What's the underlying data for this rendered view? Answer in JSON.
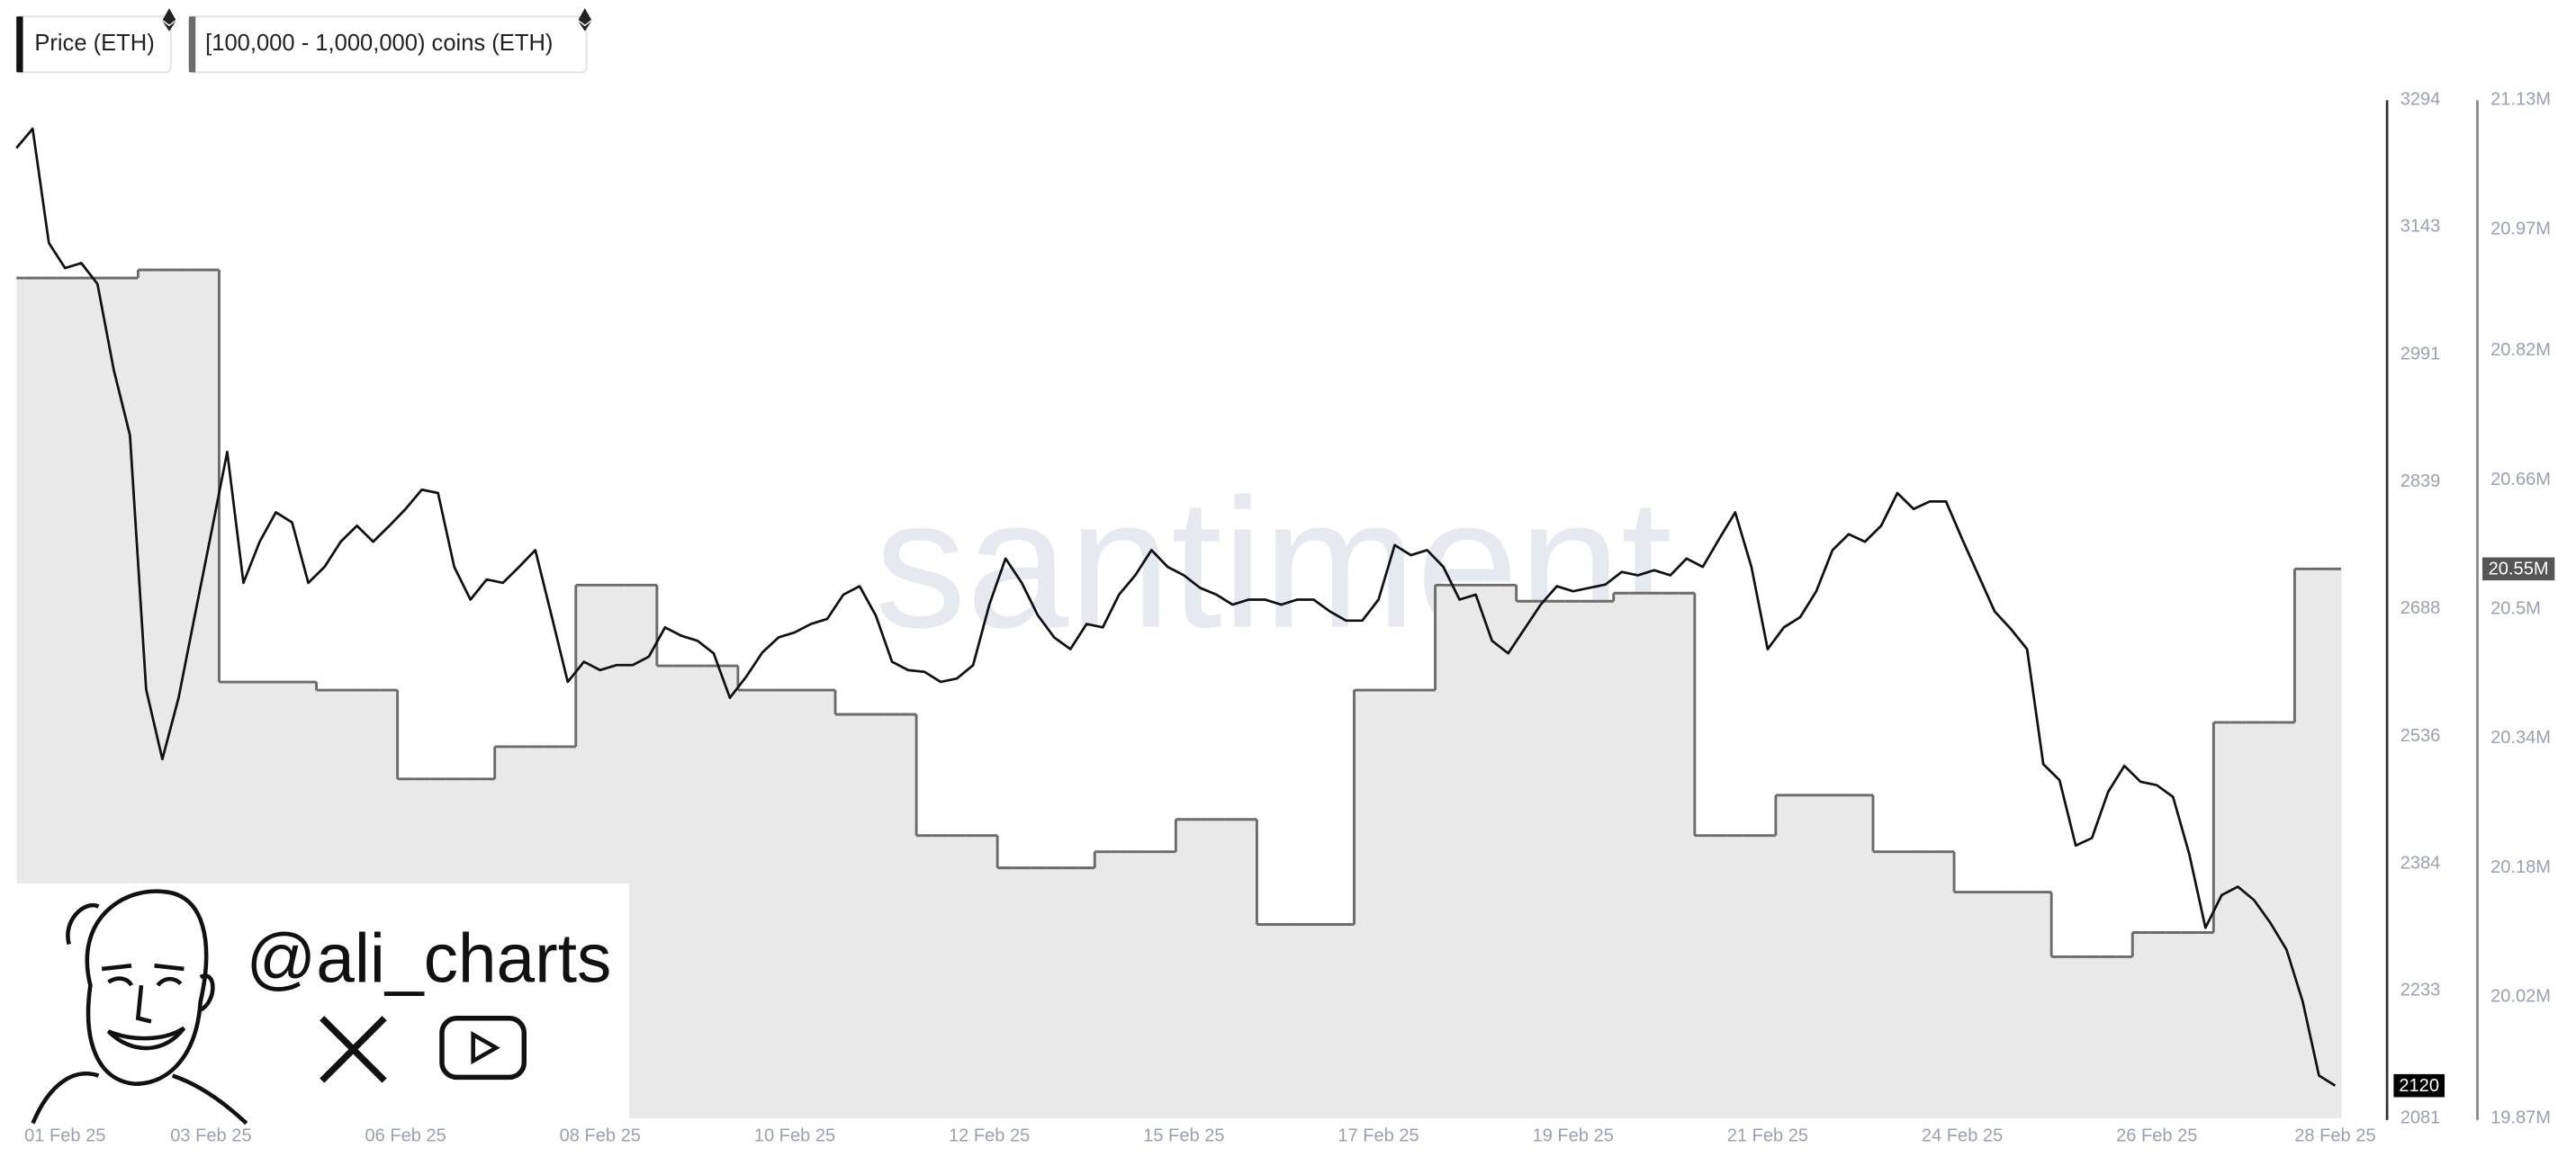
{
  "chart_data": {
    "type": "line",
    "watermark": "santiment",
    "overlay": {
      "handle": "@ali_charts"
    },
    "categories": [
      null,
      null,
      null,
      "01 Feb 25",
      null,
      null,
      null,
      null,
      null,
      null,
      null,
      null,
      "03 Feb 25",
      null,
      null,
      null,
      null,
      null,
      null,
      null,
      null,
      null,
      null,
      null,
      "06 Feb 25",
      null,
      null,
      null,
      null,
      null,
      null,
      null,
      null,
      null,
      null,
      null,
      "08 Feb 25",
      null,
      null,
      null,
      null,
      null,
      null,
      null,
      null,
      null,
      null,
      null,
      "10 Feb 25",
      null,
      null,
      null,
      null,
      null,
      null,
      null,
      null,
      null,
      null,
      null,
      "12 Feb 25",
      null,
      null,
      null,
      null,
      null,
      null,
      null,
      null,
      null,
      null,
      null,
      "15 Feb 25",
      null,
      null,
      null,
      null,
      null,
      null,
      null,
      null,
      null,
      null,
      null,
      "17 Feb 25",
      null,
      null,
      null,
      null,
      null,
      null,
      null,
      null,
      null,
      null,
      null,
      "19 Feb 25",
      null,
      null,
      null,
      null,
      null,
      null,
      null,
      null,
      null,
      null,
      null,
      "21 Feb 25",
      null,
      null,
      null,
      null,
      null,
      null,
      null,
      null,
      null,
      null,
      null,
      "24 Feb 25",
      null,
      null,
      null,
      null,
      null,
      null,
      null,
      null,
      null,
      null,
      null,
      "26 Feb 25",
      null,
      null,
      null,
      null,
      null,
      null,
      null,
      null,
      null,
      null,
      "28 Feb 25"
    ],
    "series": [
      {
        "name": "Price (ETH)",
        "color": "#111111",
        "axis": "y",
        "current_value_label": "2120",
        "values": [
          3237,
          3260,
          3124,
          3094,
          3100,
          3075,
          2973,
          2895,
          2592,
          2509,
          2582,
          2680,
          2777,
          2875,
          2719,
          2768,
          2803,
          2791,
          2719,
          2738,
          2768,
          2787,
          2768,
          2787,
          2807,
          2830,
          2826,
          2738,
          2699,
          2723,
          2719,
          2738,
          2758,
          2680,
          2601,
          2625,
          2615,
          2621,
          2621,
          2631,
          2666,
          2656,
          2650,
          2635,
          2582,
          2607,
          2636,
          2654,
          2660,
          2670,
          2676,
          2705,
          2715,
          2680,
          2625,
          2615,
          2613,
          2601,
          2605,
          2621,
          2693,
          2748,
          2719,
          2680,
          2654,
          2640,
          2670,
          2666,
          2705,
          2728,
          2758,
          2738,
          2728,
          2713,
          2705,
          2693,
          2699,
          2699,
          2693,
          2699,
          2699,
          2685,
          2674,
          2674,
          2699,
          2764,
          2752,
          2758,
          2738,
          2699,
          2705,
          2650,
          2635,
          2664,
          2693,
          2715,
          2709,
          2713,
          2717,
          2732,
          2728,
          2734,
          2728,
          2748,
          2738,
          2771,
          2803,
          2738,
          2640,
          2666,
          2678,
          2709,
          2758,
          2777,
          2768,
          2787,
          2826,
          2807,
          2816,
          2816,
          2771,
          2728,
          2685,
          2664,
          2640,
          2503,
          2484,
          2406,
          2415,
          2470,
          2501,
          2482,
          2478,
          2464,
          2396,
          2308,
          2347,
          2357,
          2341,
          2314,
          2282,
          2220,
          2132,
          2120
        ]
      },
      {
        "name": "[100,000 - 1,000,000) coins (ETH)",
        "color": "#6b6b6b",
        "fill_color": "#e9e9e9",
        "axis": "y2",
        "current_value_label": "20.55M",
        "values": [
          20910000,
          20910000,
          20910000,
          20910000,
          20910000,
          20910000,
          20910000,
          20910000,
          20920000,
          20920000,
          20920000,
          20920000,
          20920000,
          20410000,
          20410000,
          20410000,
          20410000,
          20410000,
          20410000,
          20400000,
          20400000,
          20400000,
          20400000,
          20400000,
          20290000,
          20290000,
          20290000,
          20290000,
          20290000,
          20290000,
          20330000,
          20330000,
          20330000,
          20330000,
          20330000,
          20530000,
          20530000,
          20530000,
          20530000,
          20530000,
          20430000,
          20430000,
          20430000,
          20430000,
          20430000,
          20400000,
          20400000,
          20400000,
          20400000,
          20400000,
          20400000,
          20370000,
          20370000,
          20370000,
          20370000,
          20370000,
          20220000,
          20220000,
          20220000,
          20220000,
          20220000,
          20180000,
          20180000,
          20180000,
          20180000,
          20180000,
          20180000,
          20200000,
          20200000,
          20200000,
          20200000,
          20200000,
          20240000,
          20240000,
          20240000,
          20240000,
          20240000,
          20110000,
          20110000,
          20110000,
          20110000,
          20110000,
          20110000,
          20400000,
          20400000,
          20400000,
          20400000,
          20400000,
          20530000,
          20530000,
          20530000,
          20530000,
          20530000,
          20510000,
          20510000,
          20510000,
          20510000,
          20510000,
          20510000,
          20520000,
          20520000,
          20520000,
          20520000,
          20520000,
          20220000,
          20220000,
          20220000,
          20220000,
          20220000,
          20270000,
          20270000,
          20270000,
          20270000,
          20270000,
          20270000,
          20200000,
          20200000,
          20200000,
          20200000,
          20200000,
          20150000,
          20150000,
          20150000,
          20150000,
          20150000,
          20150000,
          20070000,
          20070000,
          20070000,
          20070000,
          20070000,
          20100000,
          20100000,
          20100000,
          20100000,
          20100000,
          20360000,
          20360000,
          20360000,
          20360000,
          20360000,
          20550000,
          20550000,
          20550000
        ]
      }
    ],
    "ylim": [
      2081,
      3294
    ],
    "yticks": [
      3294,
      3143,
      2991,
      2839,
      2688,
      2536,
      2384,
      2233,
      2081
    ],
    "y2lim": [
      19870000,
      21130000
    ],
    "y2ticks": [
      {
        "value": 21130000,
        "label": "21.13M"
      },
      {
        "value": 20970000,
        "label": "20.97M"
      },
      {
        "value": 20820000,
        "label": "20.82M"
      },
      {
        "value": 20660000,
        "label": "20.66M"
      },
      {
        "value": 20500000,
        "label": "20.5M"
      },
      {
        "value": 20340000,
        "label": "20.34M"
      },
      {
        "value": 20180000,
        "label": "20.18M"
      },
      {
        "value": 20020000,
        "label": "20.02M"
      },
      {
        "value": 19870000,
        "label": "19.87M"
      }
    ],
    "grid": false
  }
}
